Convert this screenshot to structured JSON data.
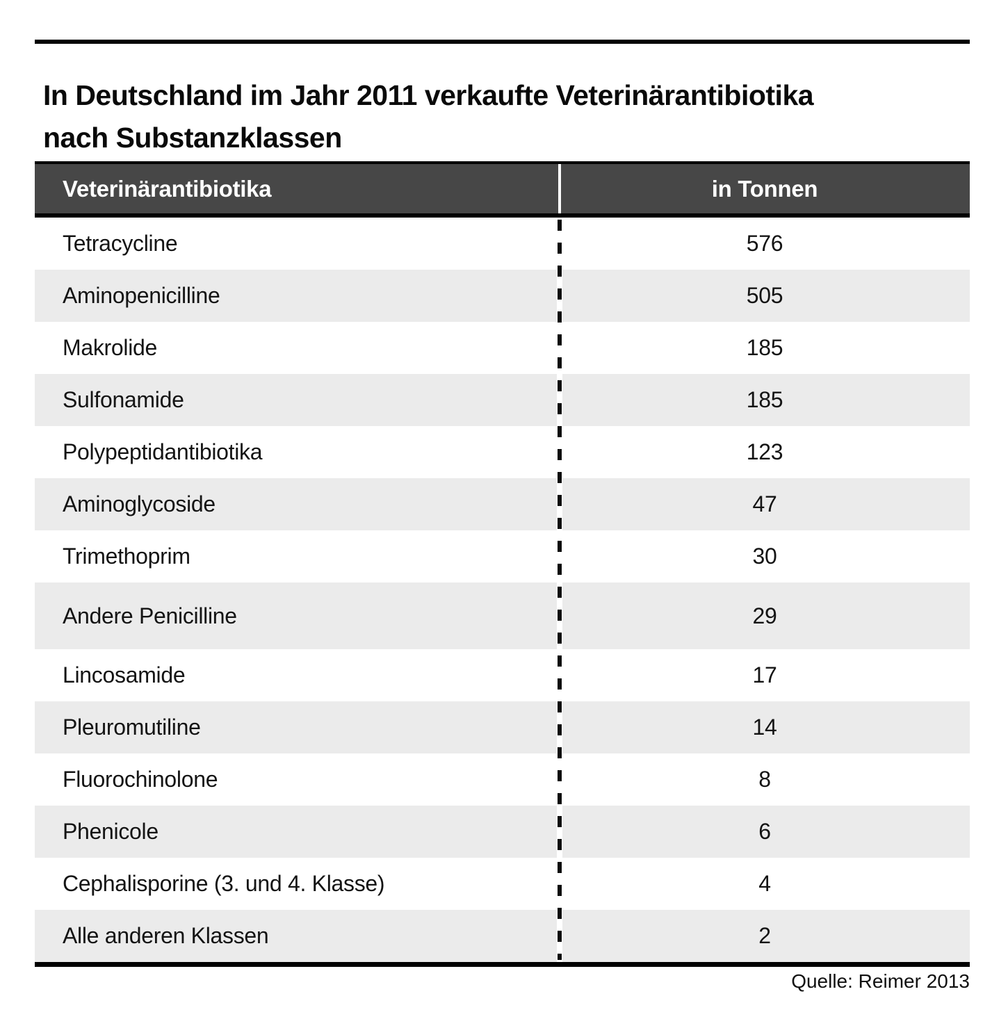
{
  "title": {
    "line1": "In Deutschland im Jahr 2011 verkaufte Veterinärantibiotika",
    "line2": "nach Substanzklassen"
  },
  "table": {
    "header": {
      "substanz": "Veterinärantibiotika",
      "einheit": "in Tonnen"
    },
    "rows": [
      {
        "substanz": "Tetracycline",
        "tonnen": "576"
      },
      {
        "substanz": "Aminopenicilline",
        "tonnen": "505"
      },
      {
        "substanz": "Makrolide",
        "tonnen": "185"
      },
      {
        "substanz": "Sulfonamide",
        "tonnen": "185"
      },
      {
        "substanz": "Polypeptidantibiotika",
        "tonnen": "123"
      },
      {
        "substanz": "Aminoglycoside",
        "tonnen": "47"
      },
      {
        "substanz": "Trimethoprim",
        "tonnen": "30"
      },
      {
        "substanz": "Andere Penicilline",
        "tonnen": "29"
      },
      {
        "substanz": "Lincosamide",
        "tonnen": "17"
      },
      {
        "substanz": "Pleuromutiline",
        "tonnen": "14"
      },
      {
        "substanz": "Fluorochinolone",
        "tonnen": "8"
      },
      {
        "substanz": "Phenicole",
        "tonnen": "6"
      },
      {
        "substanz": "Cephalisporine (3. und 4. Klasse)",
        "tonnen": "4"
      },
      {
        "substanz": "Alle anderen Klassen",
        "tonnen": "2"
      }
    ]
  },
  "source": "Quelle: Reimer 2013",
  "colors": {
    "header_bg": "#474747",
    "row_alt_bg": "#ebebeb",
    "rule": "#000000",
    "dash": "#0a0a0a"
  },
  "chart_data": {
    "type": "table",
    "title": "In Deutschland im Jahr 2011 verkaufte Veterinärantibiotika nach Substanzklassen",
    "columns": [
      "Veterinärantibiotika",
      "in Tonnen"
    ],
    "categories": [
      "Tetracycline",
      "Aminopenicilline",
      "Makrolide",
      "Sulfonamide",
      "Polypeptidantibiotika",
      "Aminoglycoside",
      "Trimethoprim",
      "Andere Penicilline",
      "Lincosamide",
      "Pleuromutiline",
      "Fluorochinolone",
      "Phenicole",
      "Cephalisporine (3. und 4. Klasse)",
      "Alle anderen Klassen"
    ],
    "values": [
      576,
      505,
      185,
      185,
      123,
      47,
      30,
      29,
      17,
      14,
      8,
      6,
      4,
      2
    ],
    "unit": "Tonnen",
    "source": "Quelle: Reimer 2013",
    "layout_hints": {
      "zebra_striping": true,
      "value_column_alignment": "center",
      "column_divider": "dashed-vertical"
    }
  }
}
